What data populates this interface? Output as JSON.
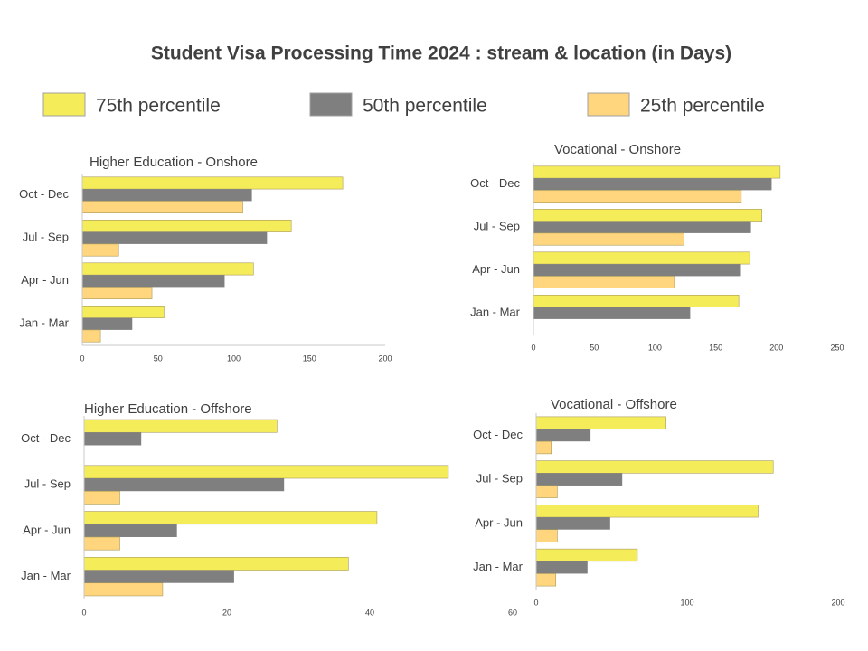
{
  "title": "Student Visa Processing Time  2024 : stream & location (in Days)",
  "chart_data": [
    {
      "type": "hbar",
      "title": "Higher Education - Onshore",
      "categories": [
        "Oct - Dec",
        "Jul - Sep",
        "Apr - Jun",
        "Jan - Mar"
      ],
      "series": [
        {
          "name": "75th percentile",
          "color": "#f5ec5a",
          "values": [
            172,
            138,
            113,
            54
          ]
        },
        {
          "name": "50th percentile",
          "color": "#7f7f7f",
          "values": [
            112,
            122,
            94,
            33
          ]
        },
        {
          "name": "25th percentile",
          "color": "#ffd57e",
          "values": [
            106,
            24,
            46,
            12
          ]
        }
      ],
      "xlim": [
        0,
        200
      ],
      "xticks": [
        0,
        50,
        100,
        150,
        200
      ]
    },
    {
      "type": "hbar",
      "title": "Vocational - Onshore",
      "categories": [
        "Oct - Dec",
        "Jul - Sep",
        "Apr - Jun",
        "Jan - Mar"
      ],
      "series": [
        {
          "name": "75th percentile",
          "color": "#f5ec5a",
          "values": [
            203,
            188,
            178,
            169
          ]
        },
        {
          "name": "50th percentile",
          "color": "#7f7f7f",
          "values": [
            196,
            179,
            170,
            129
          ]
        },
        {
          "name": "25th percentile",
          "color": "#ffd57e",
          "values": [
            171,
            124,
            116,
            null
          ]
        }
      ],
      "xlim": [
        0,
        250
      ],
      "xticks": [
        0,
        50,
        100,
        150,
        200,
        250
      ]
    },
    {
      "type": "hbar",
      "title": "Higher Education - Offshore",
      "categories": [
        "Oct - Dec",
        "Jul - Sep",
        "Apr - Jun",
        "Jan - Mar"
      ],
      "series": [
        {
          "name": "75th percentile",
          "color": "#f5ec5a",
          "values": [
            27,
            51,
            41,
            37
          ]
        },
        {
          "name": "50th percentile",
          "color": "#7f7f7f",
          "values": [
            8,
            28,
            13,
            21
          ]
        },
        {
          "name": "25th percentile",
          "color": "#ffd57e",
          "values": [
            null,
            5,
            5,
            11
          ]
        }
      ],
      "xlim": [
        0,
        60
      ],
      "xticks": [
        0,
        20,
        40,
        60
      ]
    },
    {
      "type": "hbar",
      "title": "Vocational - Offshore",
      "categories": [
        "Oct - Dec",
        "Jul - Sep",
        "Apr - Jun",
        "Jan - Mar"
      ],
      "series": [
        {
          "name": "75th percentile",
          "color": "#f5ec5a",
          "values": [
            86,
            157,
            147,
            67
          ]
        },
        {
          "name": "50th percentile",
          "color": "#7f7f7f",
          "values": [
            36,
            57,
            49,
            34
          ]
        },
        {
          "name": "25th percentile",
          "color": "#ffd57e",
          "values": [
            10,
            14,
            14,
            13
          ]
        }
      ],
      "xlim": [
        0,
        200
      ],
      "xticks": [
        0,
        100,
        200
      ]
    }
  ]
}
